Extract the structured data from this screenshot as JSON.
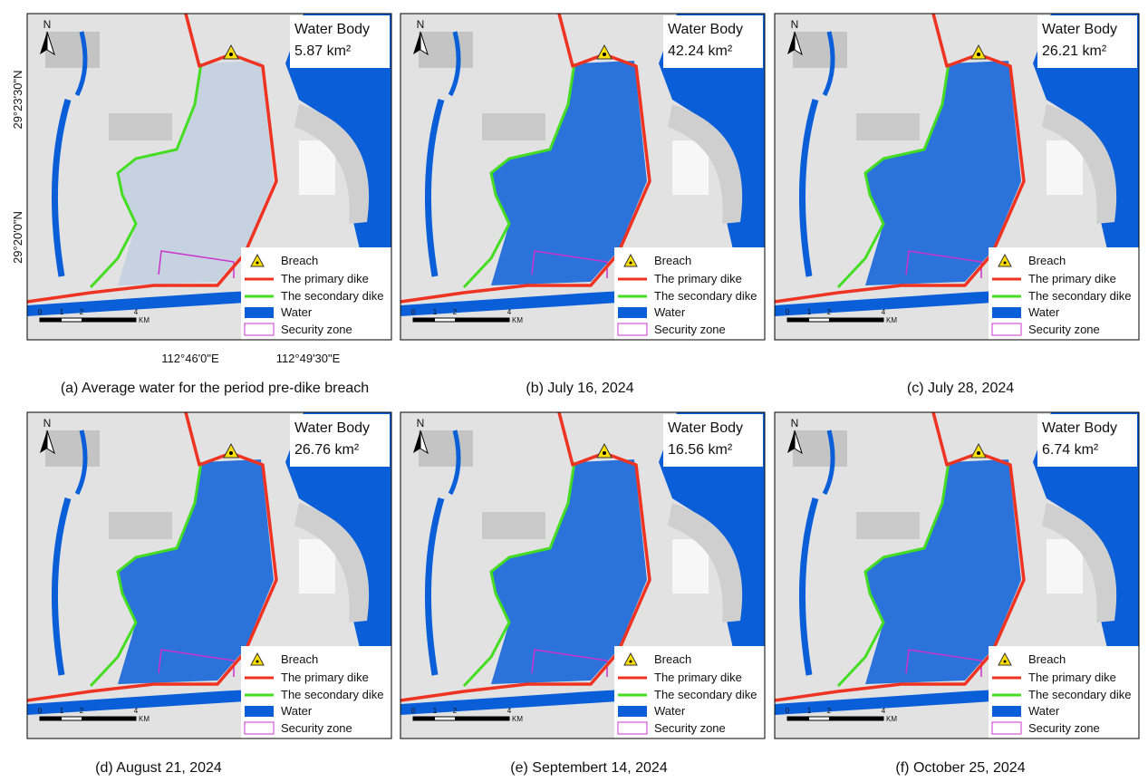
{
  "panels": [
    {
      "area": "5.87 km²",
      "caption": "(a) Average water for the period pre-dike breach"
    },
    {
      "area": "42.24 km²",
      "caption": "(b) July 16, 2024"
    },
    {
      "area": "26.21 km²",
      "caption": "(c) July 28, 2024"
    },
    {
      "area": "26.76 km²",
      "caption": "(d) August 21, 2024"
    },
    {
      "area": "16.56 km²",
      "caption": "(e) Septembert 14, 2024"
    },
    {
      "area": "6.74 km²",
      "caption": "(f) October 25, 2024"
    }
  ],
  "common": {
    "north": "N",
    "water_body": "Water Body",
    "legend": [
      "Breach",
      "The primary dike",
      "The secondary dike",
      "Water",
      "Security zone"
    ],
    "scale": [
      "0",
      "1",
      "2",
      "4",
      "KM"
    ]
  },
  "axes": {
    "y_labels": [
      "29°23'30\"N",
      "29°20'0\"N"
    ],
    "x_labels": [
      "112°46'0\"E",
      "112°49'30\"E"
    ]
  }
}
